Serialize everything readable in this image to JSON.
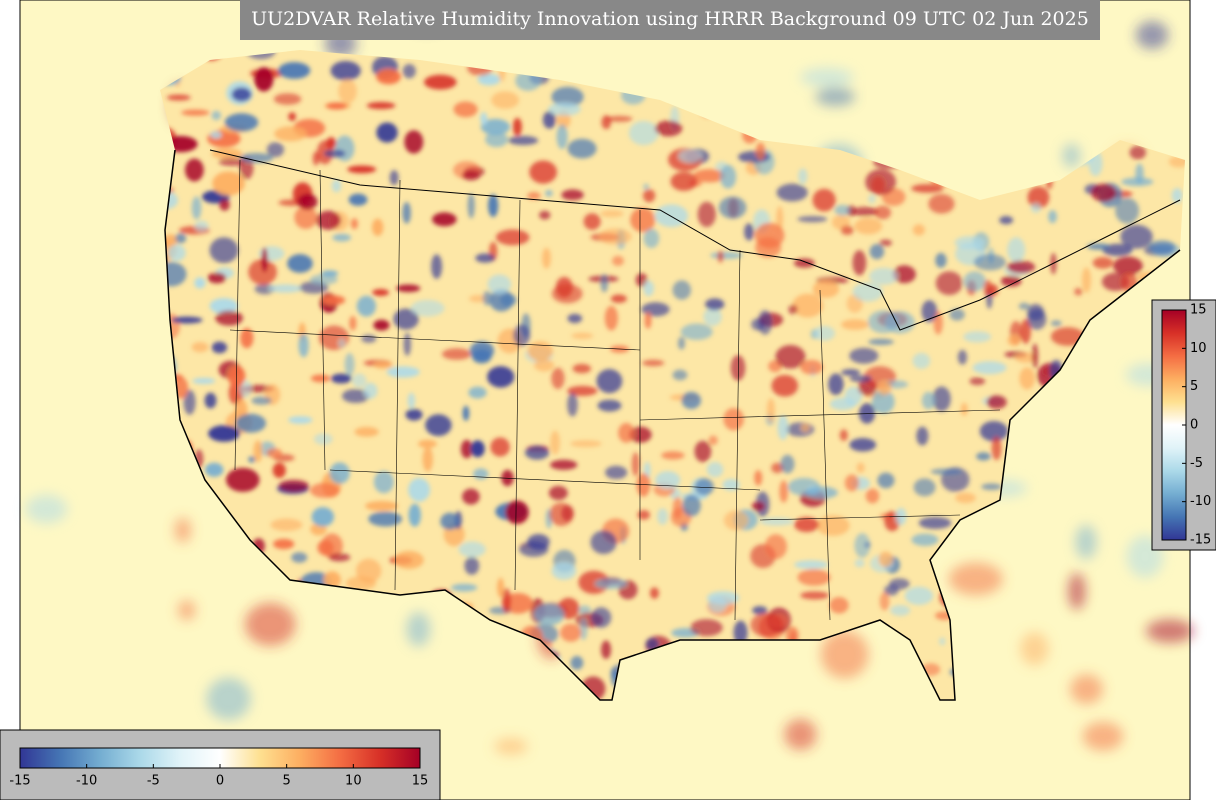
{
  "title": "UU2DVAR Relative Humidity Innovation using HRRR Background 09 UTC 02 Jun 2025",
  "colorbars": [
    {
      "orientation": "vertical",
      "lim": [
        -15,
        15
      ],
      "ticks": [
        15,
        10,
        5,
        0,
        -5,
        -10,
        -15
      ],
      "colors": [
        "#313695",
        "#4575b4",
        "#74add1",
        "#abd9e9",
        "#e0f3f8",
        "#ffffff",
        "#fee090",
        "#fdae61",
        "#f46d43",
        "#d73027",
        "#a50026"
      ]
    },
    {
      "orientation": "horizontal",
      "lim": [
        -15,
        15
      ],
      "ticks": [
        -15,
        -10,
        -5,
        0,
        5,
        10,
        15
      ],
      "colors": [
        "#313695",
        "#4575b4",
        "#74add1",
        "#abd9e9",
        "#e0f3f8",
        "#ffffff",
        "#fee090",
        "#fdae61",
        "#f46d43",
        "#d73027",
        "#a50026"
      ]
    }
  ]
}
